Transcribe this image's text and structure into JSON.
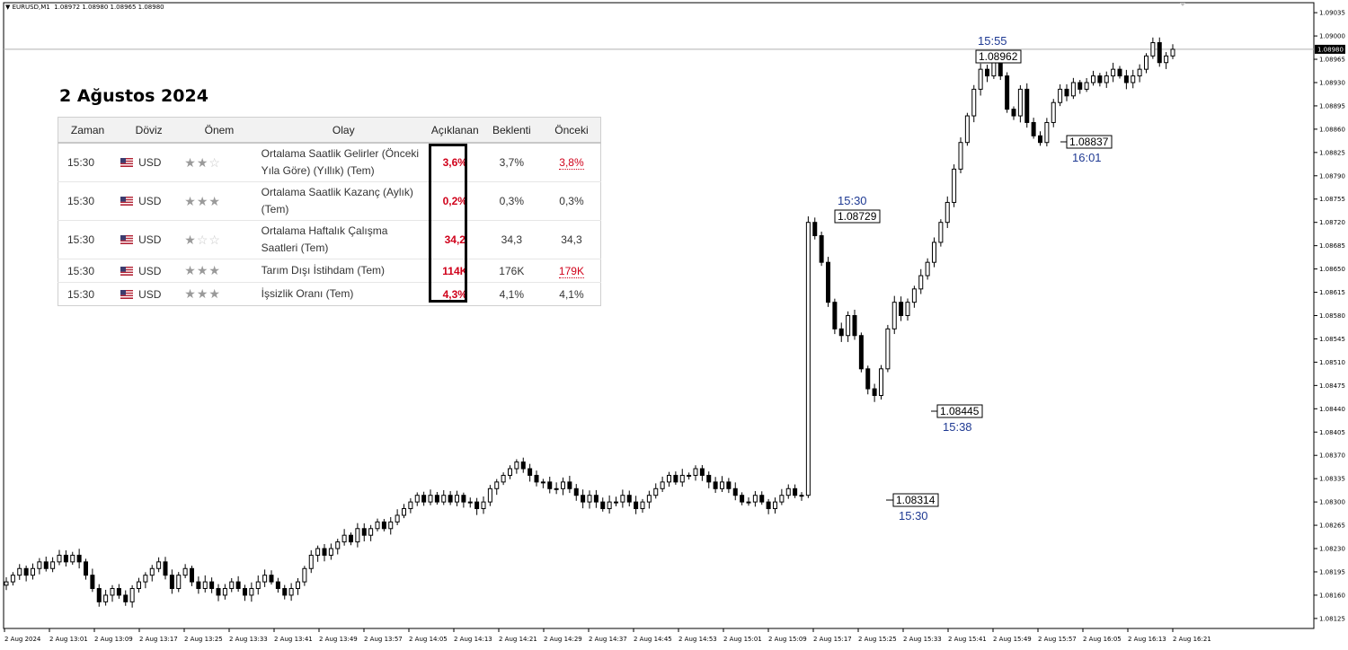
{
  "header": {
    "symbol": "EURUSD,M1",
    "ohlc": "1.08972 1.08980 1.08965 1.08980"
  },
  "calendar": {
    "title": "2 Ağustos 2024",
    "columns": [
      "Zaman",
      "Döviz",
      "Önem",
      "Olay",
      "Açıklanan",
      "Beklenti",
      "Önceki"
    ],
    "rows": [
      {
        "time": "15:30",
        "currency": "USD",
        "stars": 2,
        "event": "Ortalama Saatlik Gelirler (Önceki Yıla Göre) (Yıllık) (Tem)",
        "actual": "3,6%",
        "forecast": "3,7%",
        "previous": "3,8%",
        "previous_red": true
      },
      {
        "time": "15:30",
        "currency": "USD",
        "stars": 3,
        "event": "Ortalama Saatlik Kazanç (Aylık) (Tem)",
        "actual": "0,2%",
        "forecast": "0,3%",
        "previous": "0,3%",
        "previous_red": false
      },
      {
        "time": "15:30",
        "currency": "USD",
        "stars": 1,
        "event": "Ortalama Haftalık Çalışma Saatleri (Tem)",
        "actual": "34,2",
        "forecast": "34,3",
        "previous": "34,3",
        "previous_red": false
      },
      {
        "time": "15:30",
        "currency": "USD",
        "stars": 3,
        "event": "Tarım Dışı İstihdam (Tem)",
        "actual": "114K",
        "forecast": "176K",
        "previous": "179K",
        "previous_red": true
      },
      {
        "time": "15:30",
        "currency": "USD",
        "stars": 3,
        "event": "İşsizlik Oranı (Tem)",
        "actual": "4,3%",
        "forecast": "4,1%",
        "previous": "4,1%",
        "previous_red": false
      }
    ]
  },
  "chart_data": {
    "type": "candlestick",
    "symbol": "EURUSD",
    "timeframe": "M1",
    "ylim": [
      1.0811,
      1.0905
    ],
    "y_ticks": [
      "1.09035",
      "1.09000",
      "1.08965",
      "1.08930",
      "1.08895",
      "1.08860",
      "1.08825",
      "1.08790",
      "1.08755",
      "1.08720",
      "1.08685",
      "1.08650",
      "1.08615",
      "1.08580",
      "1.08545",
      "1.08510",
      "1.08475",
      "1.08440",
      "1.08405",
      "1.08370",
      "1.08335",
      "1.08300",
      "1.08265",
      "1.08230",
      "1.08195",
      "1.08160",
      "1.08125"
    ],
    "x_ticks": [
      "2 Aug 2024",
      "2 Aug 13:01",
      "2 Aug 13:09",
      "2 Aug 13:17",
      "2 Aug 13:25",
      "2 Aug 13:33",
      "2 Aug 13:41",
      "2 Aug 13:49",
      "2 Aug 13:57",
      "2 Aug 14:05",
      "2 Aug 14:13",
      "2 Aug 14:21",
      "2 Aug 14:29",
      "2 Aug 14:37",
      "2 Aug 14:45",
      "2 Aug 14:53",
      "2 Aug 15:01",
      "2 Aug 15:09",
      "2 Aug 15:17",
      "2 Aug 15:25",
      "2 Aug 15:33",
      "2 Aug 15:41",
      "2 Aug 15:49",
      "2 Aug 15:57",
      "2 Aug 16:05",
      "2 Aug 16:13",
      "2 Aug 16:21"
    ],
    "current_price": "1.08980",
    "close_series": [
      1.0818,
      1.0819,
      1.082,
      1.0819,
      1.082,
      1.0821,
      1.082,
      1.0821,
      1.0822,
      1.0821,
      1.0822,
      1.0821,
      1.0819,
      1.0817,
      1.0815,
      1.0816,
      1.0817,
      1.0816,
      1.0815,
      1.0817,
      1.0818,
      1.0819,
      1.082,
      1.0821,
      1.0819,
      1.0817,
      1.0819,
      1.082,
      1.0818,
      1.0817,
      1.0818,
      1.0817,
      1.0816,
      1.0817,
      1.0818,
      1.0817,
      1.0816,
      1.0817,
      1.0818,
      1.0819,
      1.0818,
      1.0817,
      1.0816,
      1.0817,
      1.0818,
      1.082,
      1.0822,
      1.0823,
      1.0822,
      1.0823,
      1.0824,
      1.0825,
      1.0824,
      1.0826,
      1.0825,
      1.0826,
      1.0827,
      1.0826,
      1.0827,
      1.0828,
      1.0829,
      1.083,
      1.0831,
      1.083,
      1.0831,
      1.083,
      1.0831,
      1.083,
      1.0831,
      1.083,
      1.083,
      1.0829,
      1.083,
      1.0832,
      1.0833,
      1.0834,
      1.0835,
      1.0836,
      1.0835,
      1.0834,
      1.0833,
      1.0833,
      1.0832,
      1.0832,
      1.0833,
      1.0832,
      1.0831,
      1.083,
      1.0831,
      1.083,
      1.0829,
      1.083,
      1.083,
      1.0831,
      1.083,
      1.0829,
      1.083,
      1.0831,
      1.0832,
      1.0833,
      1.0834,
      1.0833,
      1.0834,
      1.0834,
      1.0835,
      1.0834,
      1.0833,
      1.0832,
      1.0833,
      1.0832,
      1.0831,
      1.083,
      1.083,
      1.0831,
      1.083,
      1.0829,
      1.083,
      1.0831,
      1.0832,
      1.0831,
      1.0831,
      1.0872,
      1.087,
      1.0866,
      1.086,
      1.0856,
      1.0855,
      1.0858,
      1.0855,
      1.085,
      1.0847,
      1.0846,
      1.085,
      1.0856,
      1.086,
      1.0858,
      1.086,
      1.0862,
      1.0864,
      1.0866,
      1.0869,
      1.0872,
      1.0875,
      1.088,
      1.0884,
      1.0888,
      1.0892,
      1.0895,
      1.0894,
      1.0896,
      1.0894,
      1.0889,
      1.0888,
      1.0892,
      1.0887,
      1.0885,
      1.0884,
      1.0887,
      1.089,
      1.0892,
      1.0891,
      1.0893,
      1.0892,
      1.0893,
      1.0894,
      1.0893,
      1.0894,
      1.0895,
      1.0894,
      1.0893,
      1.0894,
      1.0895,
      1.0897,
      1.0899,
      1.0896,
      1.0897,
      1.0898
    ],
    "annotations": [
      {
        "time": "15:30",
        "price": "1.08314",
        "label_position": "below"
      },
      {
        "time": "15:30",
        "price": "1.08729",
        "label_position": "above"
      },
      {
        "time": "15:38",
        "price": "1.08445",
        "label_position": "below"
      },
      {
        "time": "15:55",
        "price": "1.08962",
        "label_position": "above"
      },
      {
        "time": "16:01",
        "price": "1.08837",
        "label_position": "below"
      }
    ],
    "grid": false
  }
}
